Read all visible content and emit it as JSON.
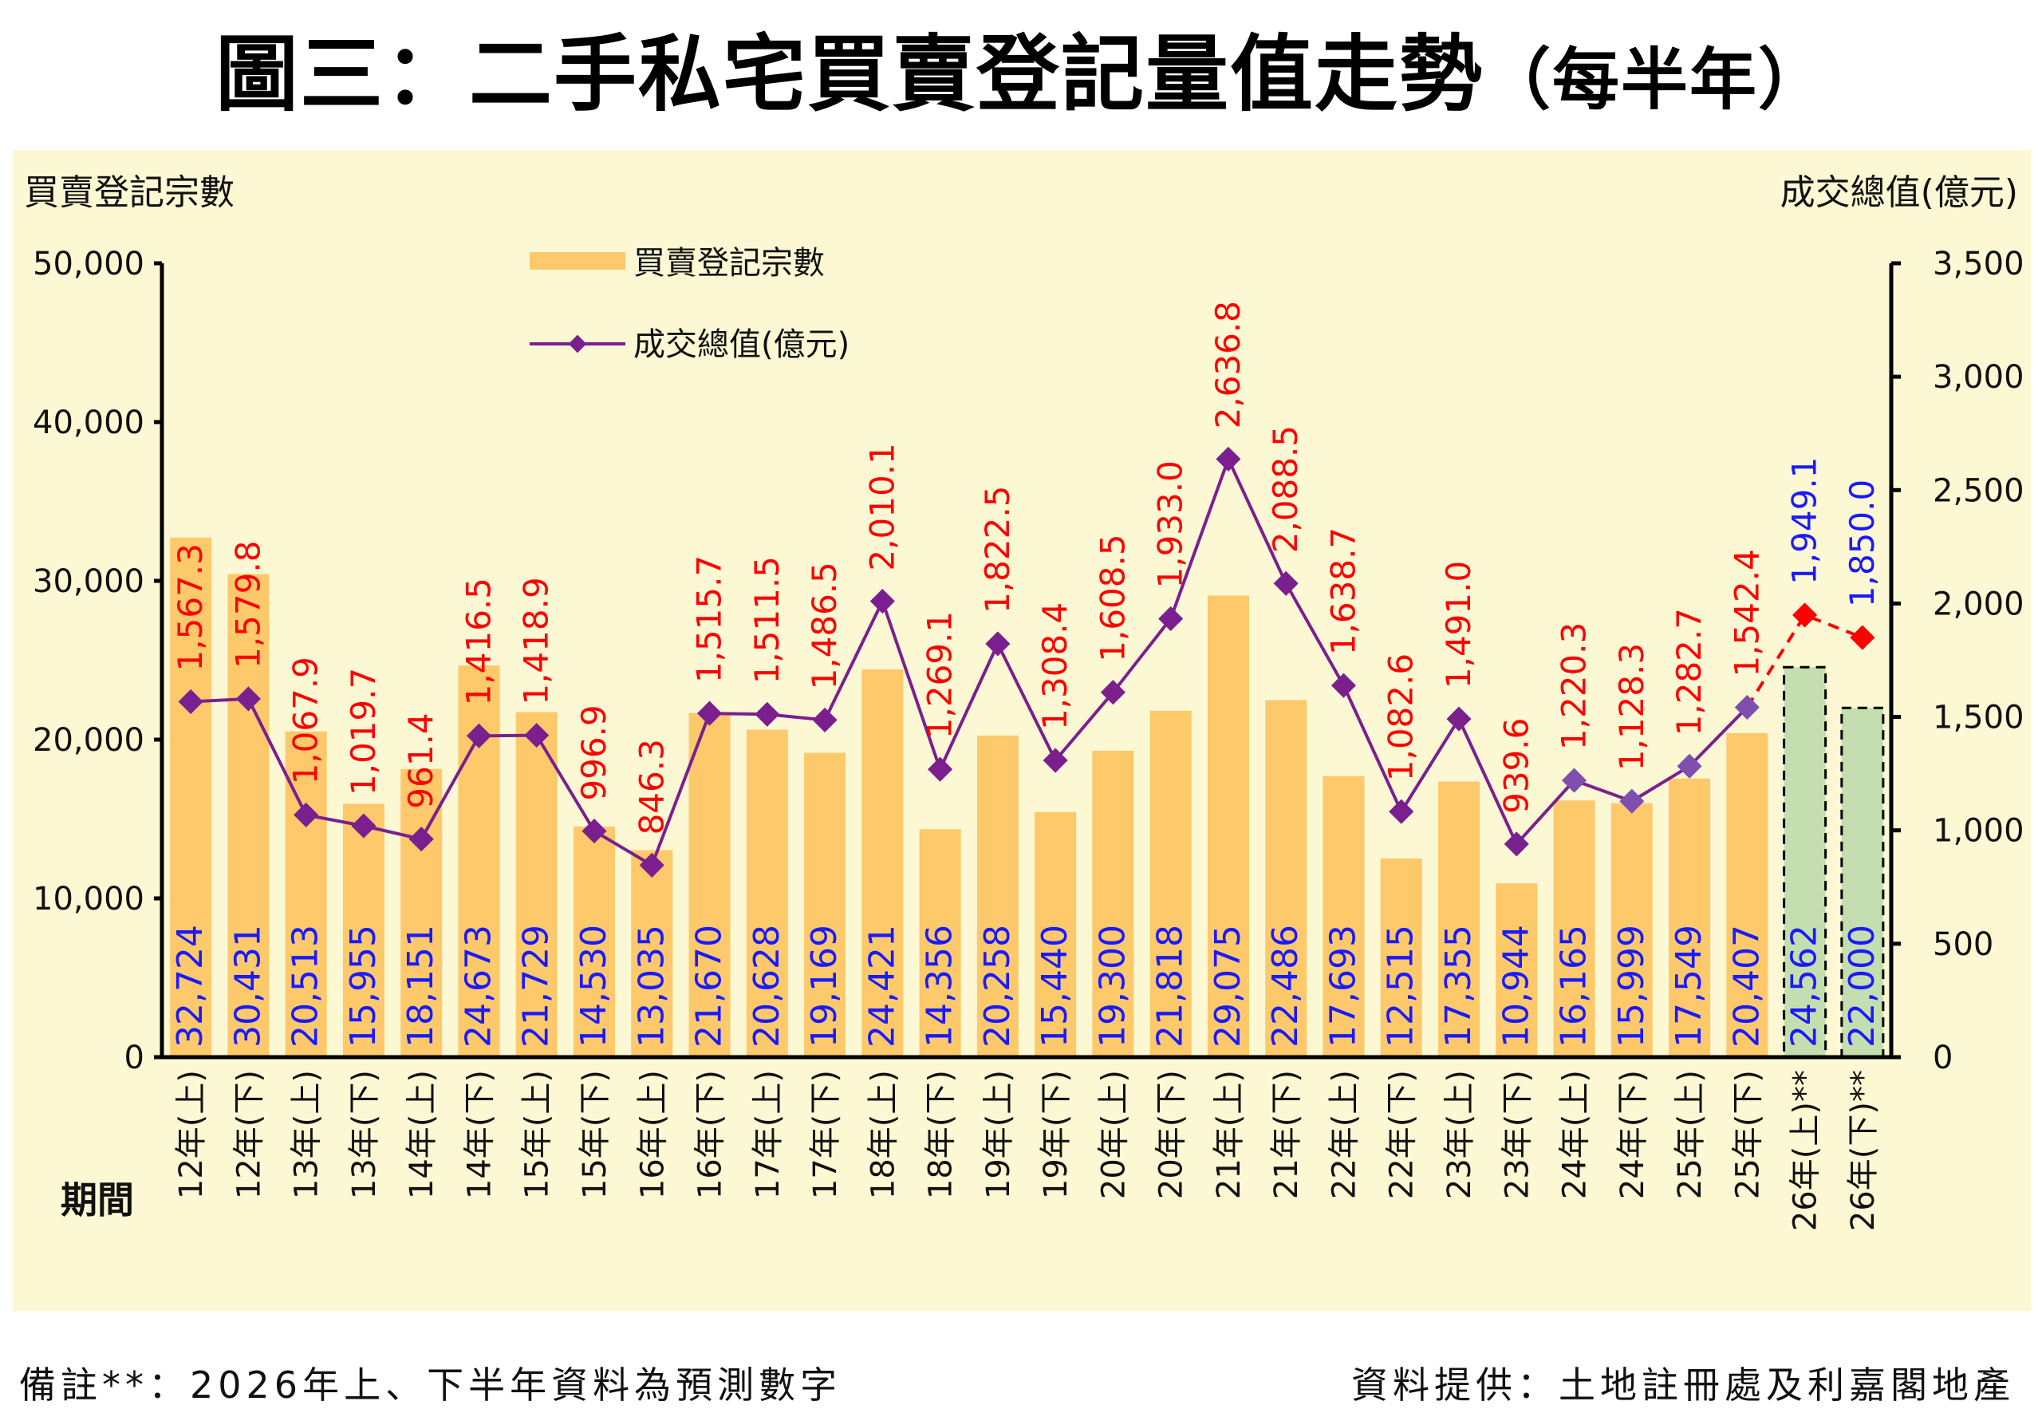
{
  "title": "圖三：二手私宅買賣登記量值走勢",
  "title_suffix": "（每半年）",
  "footnote": "備註**：2026年上、下半年資料為預測數字",
  "source": "資料提供：土地註冊處及利嘉閣地產",
  "chart_data": {
    "type": "bar+line",
    "categories": [
      "12年(上)",
      "12年(下)",
      "13年(上)",
      "13年(下)",
      "14年(上)",
      "14年(下)",
      "15年(上)",
      "15年(下)",
      "16年(上)",
      "16年(下)",
      "17年(上)",
      "17年(下)",
      "18年(上)",
      "18年(下)",
      "19年(上)",
      "19年(下)",
      "20年(上)",
      "20年(下)",
      "21年(上)",
      "21年(下)",
      "22年(上)",
      "22年(下)",
      "23年(上)",
      "23年(下)",
      "24年(上)",
      "24年(下)",
      "25年(上)",
      "25年(下)",
      "26年(上)**",
      "26年(下)**"
    ],
    "xlabel": "期間",
    "ylabel_left": "買賣登記宗數",
    "ylabel_right": "成交總值(億元)",
    "ylim_left": [
      0,
      50000
    ],
    "yticks_left": [
      "0",
      "10,000",
      "20,000",
      "30,000",
      "40,000",
      "50,000"
    ],
    "ylim_right": [
      0,
      3500
    ],
    "yticks_right": [
      "0",
      "500",
      "1,000",
      "1,500",
      "2,000",
      "2,500",
      "3,000",
      "3,500"
    ],
    "legend": {
      "bars": "買賣登記宗數",
      "line": "成交總值(億元)",
      "placement": "top-left"
    },
    "series": [
      {
        "name": "買賣登記宗數",
        "type": "bar",
        "values": [
          32724,
          30431,
          20513,
          15955,
          18151,
          24673,
          21729,
          14530,
          13035,
          21670,
          20628,
          19169,
          24421,
          14356,
          20258,
          15440,
          19300,
          21818,
          29075,
          22486,
          17693,
          12515,
          17355,
          10944,
          16165,
          15999,
          17549,
          20407,
          24562,
          22000
        ],
        "labels": [
          "32,724",
          "30,431",
          "20,513",
          "15,955",
          "18,151",
          "24,673",
          "21,729",
          "14,530",
          "13,035",
          "21,670",
          "20,628",
          "19,169",
          "24,421",
          "14,356",
          "20,258",
          "15,440",
          "19,300",
          "21,818",
          "29,075",
          "22,486",
          "17,693",
          "12,515",
          "17,355",
          "10,944",
          "16,165",
          "15,999",
          "17,549",
          "20,407",
          "24,562",
          "22,000"
        ],
        "forecast_from_index": 28
      },
      {
        "name": "成交總值(億元)",
        "type": "line",
        "values": [
          1567.3,
          1579.8,
          1067.9,
          1019.7,
          961.4,
          1416.5,
          1418.9,
          996.9,
          846.3,
          1515.7,
          1511.5,
          1486.5,
          2010.1,
          1269.1,
          1822.5,
          1308.4,
          1608.5,
          1933.0,
          2636.8,
          2088.5,
          1638.7,
          1082.6,
          1491.0,
          939.6,
          1220.3,
          1128.3,
          1282.7,
          1542.4,
          1949.1,
          1850.0
        ],
        "labels": [
          "1,567.3",
          "1,579.8",
          "1,067.9",
          "1,019.7",
          "961.4",
          "1,416.5",
          "1,418.9",
          "996.9",
          "846.3",
          "1,515.7",
          "1,511.5",
          "1,486.5",
          "2,010.1",
          "1,269.1",
          "1,822.5",
          "1,308.4",
          "1,608.5",
          "1,933.0",
          "2,636.8",
          "2,088.5",
          "1,638.7",
          "1,082.6",
          "1,491.0",
          "939.6",
          "1,220.3",
          "1,128.3",
          "1,282.7",
          "1,542.4",
          "1,949.1",
          "1,850.0"
        ],
        "forecast_from_index": 28
      }
    ],
    "colors": {
      "bar": "#fdc96b",
      "bar_forecast": "#c5deb0",
      "line": "#7b1f8f",
      "line_2024_25": "#7f4fb0",
      "forecast_marker": "#ff0000",
      "value_label_line": "#ff0000",
      "value_label_bar": "#1a1aff",
      "panel_background": "#fcf8d4"
    }
  }
}
